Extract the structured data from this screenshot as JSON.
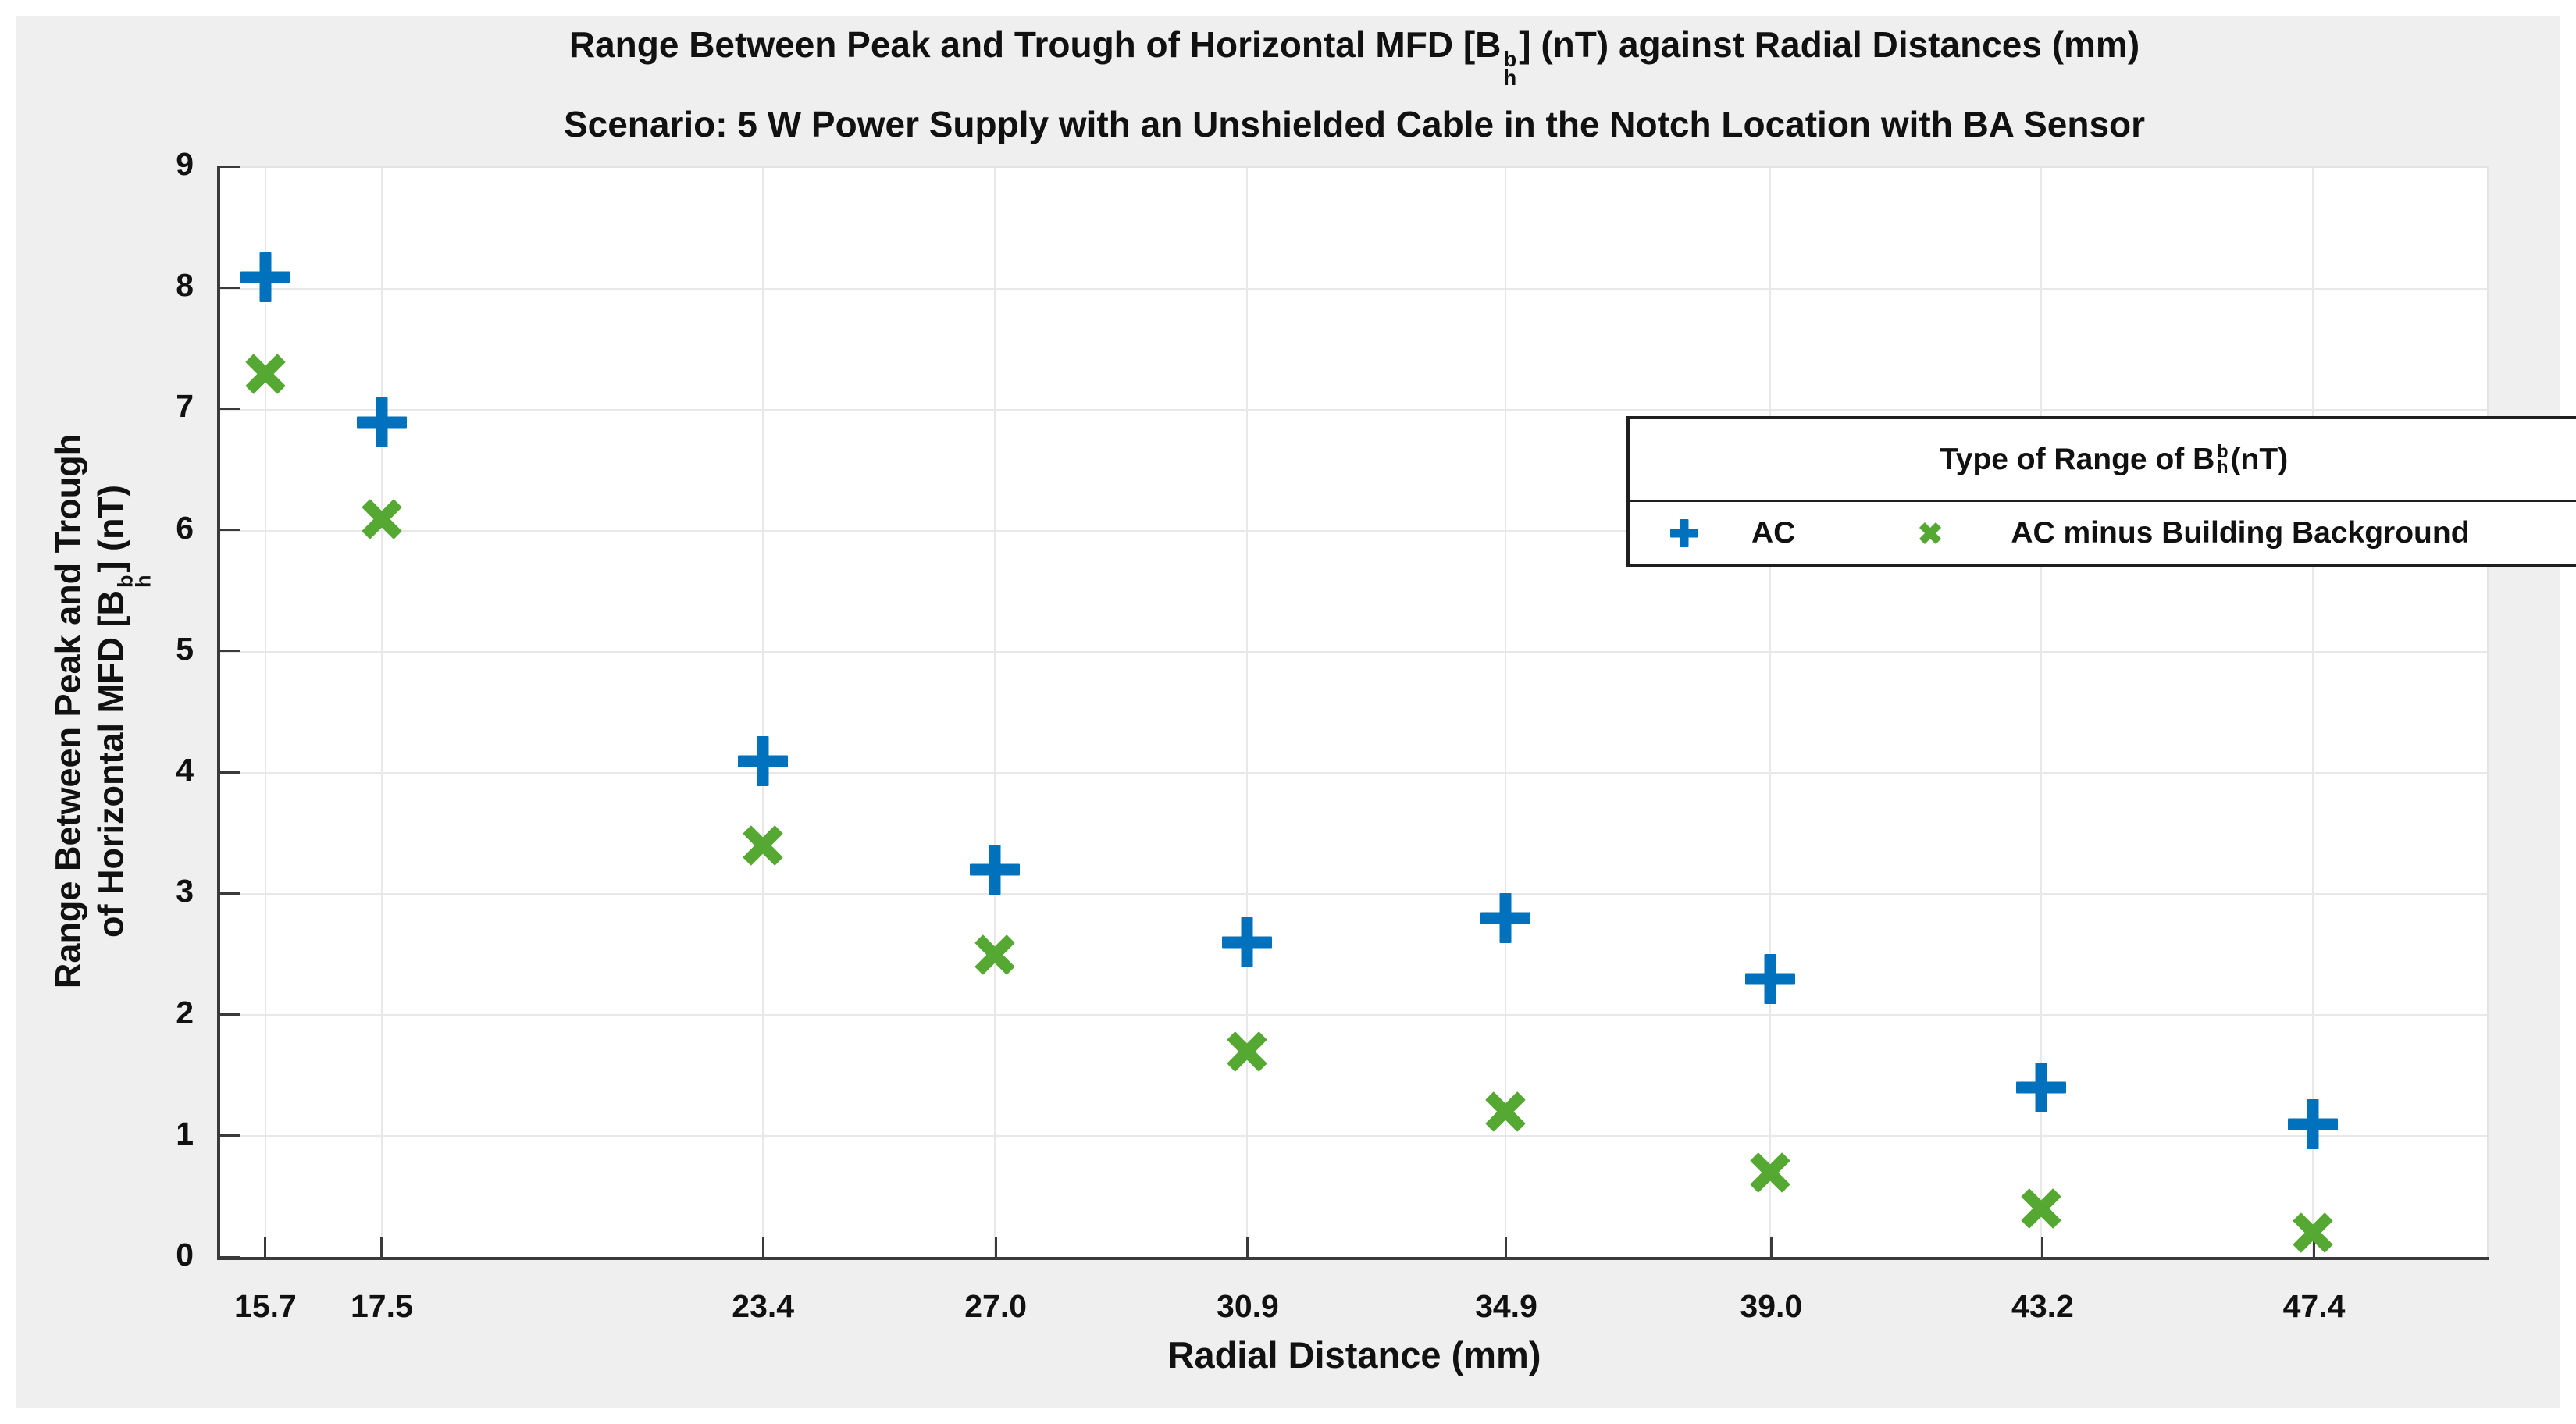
{
  "figure": {
    "title": {
      "pre": "Range Between Peak and Trough of Horizontal MFD [B",
      "sup": "b",
      "sub": "h",
      "post": "] (nT) against Radial Distances (mm)"
    },
    "subtitle": "Scenario: 5 W Power Supply with an Unshielded Cable in the Notch Location with BA Sensor",
    "ylabel": {
      "line1": "Range Between Peak and Trough",
      "line2_pre": "of Horizontal MFD [B",
      "sup": "b",
      "sub": "h",
      "line2_post": "] (nT)"
    },
    "xlabel": "Radial Distance (mm)",
    "legend": {
      "title_pre": "Type of Range of B",
      "title_sup": "b",
      "title_sub": "h",
      "title_post": " (nT)",
      "items": [
        {
          "label": "AC",
          "marker": "plus",
          "color": "#0072BD",
          "icon_size": 36,
          "icon_thick": 11
        },
        {
          "label": "AC minus Building Background",
          "marker": "x",
          "color": "#55A832",
          "icon_size": 30,
          "icon_thick": 10
        }
      ]
    }
  },
  "chart_data": {
    "type": "scatter",
    "x": [
      15.7,
      17.5,
      23.4,
      27.0,
      30.9,
      34.9,
      39.0,
      43.2,
      47.4
    ],
    "series": [
      {
        "name": "AC",
        "marker": "plus",
        "color": "#0072BD",
        "values": [
          8.1,
          6.9,
          4.1,
          3.2,
          2.6,
          2.8,
          2.3,
          1.4,
          1.1
        ]
      },
      {
        "name": "AC minus Building Background",
        "marker": "x",
        "color": "#55A832",
        "values": [
          7.3,
          6.1,
          3.4,
          2.5,
          1.7,
          1.2,
          0.7,
          0.4,
          0.2
        ]
      }
    ],
    "title": "Range Between Peak and Trough of Horizontal MFD [B_h^b] (nT) against Radial Distances (mm)",
    "subtitle": "Scenario: 5 W Power Supply with an Unshielded Cable in the Notch Location with BA Sensor",
    "xlabel": "Radial Distance (mm)",
    "ylabel": "Range Between Peak and Trough of Horizontal MFD [B_h^b] (nT)",
    "xlim": [
      15.0,
      50.1
    ],
    "ylim": [
      0,
      9
    ],
    "xticks": [
      "15.7",
      "17.5",
      "23.4",
      "27.0",
      "30.9",
      "34.9",
      "39.0",
      "43.2",
      "47.4"
    ],
    "yticks": [
      "0",
      "1",
      "2",
      "3",
      "4",
      "5",
      "6",
      "7",
      "8",
      "9"
    ],
    "grid": true,
    "legend_position": "upper right",
    "legend_title": "Type of Range of B_h^b (nT)"
  },
  "colors": {
    "ac_blue": "#0072BD",
    "ac_minus_bg_green": "#55A832",
    "grid": "#E8E8E8",
    "spine": "#3A3A3A",
    "figure_background": "#EFEFEF",
    "plot_background": "#FFFFFF",
    "legend_border": "#1F1F1F"
  }
}
